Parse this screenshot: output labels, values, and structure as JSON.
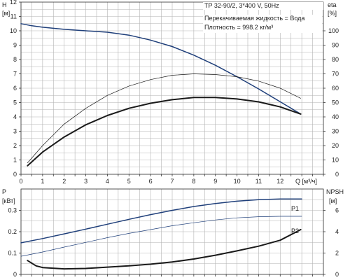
{
  "chart_data": [
    {
      "type": "line",
      "title": "TP 32-90/2, 3*400 V, 50Hz",
      "annotations": [
        "Перекачиваемая жидкость = Вода",
        "Плотность = 998.2 кг/м³"
      ],
      "left_axis": {
        "label": "H",
        "unit": "[м]",
        "lim": [
          0,
          12
        ],
        "ticks": [
          0,
          1,
          2,
          3,
          4,
          5,
          6,
          7,
          8,
          9,
          10,
          11,
          12
        ]
      },
      "right_axis": {
        "label": "eta",
        "unit": "[%]",
        "lim": [
          0,
          120
        ],
        "ticks": [
          0,
          10,
          20,
          30,
          40,
          50,
          60,
          70,
          80,
          90,
          100
        ]
      },
      "x_axis": {
        "label": "Q [м³/ч]",
        "lim": [
          0,
          14
        ],
        "ticks": [
          0,
          1,
          2,
          3,
          4,
          5,
          6,
          7,
          8,
          9,
          10,
          11,
          12
        ]
      },
      "grid": true,
      "series": [
        {
          "axis": "left",
          "color": "#1f3f7a",
          "width": 1.5,
          "x": [
            0,
            0.5,
            1,
            2,
            3,
            4,
            5,
            6,
            7,
            8,
            9,
            10,
            11,
            12.95
          ],
          "y": [
            10.5,
            10.35,
            10.25,
            10.1,
            10.0,
            9.9,
            9.7,
            9.35,
            8.9,
            8.3,
            7.6,
            6.8,
            5.95,
            4.2
          ]
        },
        {
          "axis": "left",
          "color": "#1a1a1a",
          "width": 0.7,
          "x": [
            0.3,
            1,
            2,
            3,
            4,
            5,
            6,
            7,
            8,
            9,
            10,
            11,
            12,
            12.95
          ],
          "y": [
            0.8,
            2.0,
            3.5,
            4.6,
            5.5,
            6.15,
            6.6,
            6.9,
            7.0,
            6.95,
            6.8,
            6.5,
            6.0,
            5.3
          ]
        },
        {
          "axis": "left",
          "color": "#1a1a1a",
          "width": 2.0,
          "x": [
            0.3,
            1,
            2,
            3,
            4,
            5,
            6,
            7,
            8,
            9,
            10,
            11,
            12,
            12.95
          ],
          "y": [
            0.6,
            1.55,
            2.6,
            3.45,
            4.1,
            4.6,
            4.95,
            5.2,
            5.35,
            5.35,
            5.25,
            5.05,
            4.7,
            4.2
          ]
        }
      ]
    },
    {
      "type": "line",
      "left_axis": {
        "label": "P",
        "unit": "[кВт]",
        "lim": [
          0,
          0.4
        ],
        "ticks": [
          0,
          0.1,
          0.2,
          0.3
        ]
      },
      "right_axis": {
        "label": "NPSH",
        "unit": "[м]",
        "lim": [
          0,
          8
        ],
        "ticks": [
          0,
          2,
          4,
          6
        ]
      },
      "x_axis": {
        "lim": [
          0,
          14
        ],
        "ticks": [
          0,
          1,
          2,
          3,
          4,
          5,
          6,
          7,
          8,
          9,
          10,
          11,
          12
        ]
      },
      "grid": true,
      "series": [
        {
          "name": "P1",
          "axis": "left",
          "color": "#1f3f7a",
          "width": 1.5,
          "x": [
            0,
            1,
            2,
            3,
            4,
            5,
            6,
            7,
            8,
            9,
            10,
            11,
            12,
            13
          ],
          "y": [
            0.148,
            0.168,
            0.19,
            0.212,
            0.235,
            0.258,
            0.28,
            0.3,
            0.318,
            0.332,
            0.343,
            0.35,
            0.353,
            0.353
          ]
        },
        {
          "name": "P2",
          "axis": "left",
          "color": "#1f3f7a",
          "width": 0.7,
          "x": [
            0,
            1,
            2,
            3,
            4,
            5,
            6,
            7,
            8,
            9,
            10,
            11,
            12,
            13
          ],
          "y": [
            0.085,
            0.105,
            0.128,
            0.15,
            0.172,
            0.192,
            0.21,
            0.228,
            0.242,
            0.255,
            0.265,
            0.27,
            0.272,
            0.272
          ]
        },
        {
          "axis": "left",
          "color": "#1a1a1a",
          "width": 2.0,
          "x": [
            0.3,
            0.7,
            1,
            2,
            3,
            4,
            5,
            6,
            7,
            8,
            9,
            10,
            11,
            12,
            12.95
          ],
          "y": [
            0.065,
            0.04,
            0.032,
            0.026,
            0.028,
            0.034,
            0.04,
            0.048,
            0.058,
            0.072,
            0.09,
            0.11,
            0.132,
            0.16,
            0.21
          ]
        }
      ]
    }
  ]
}
